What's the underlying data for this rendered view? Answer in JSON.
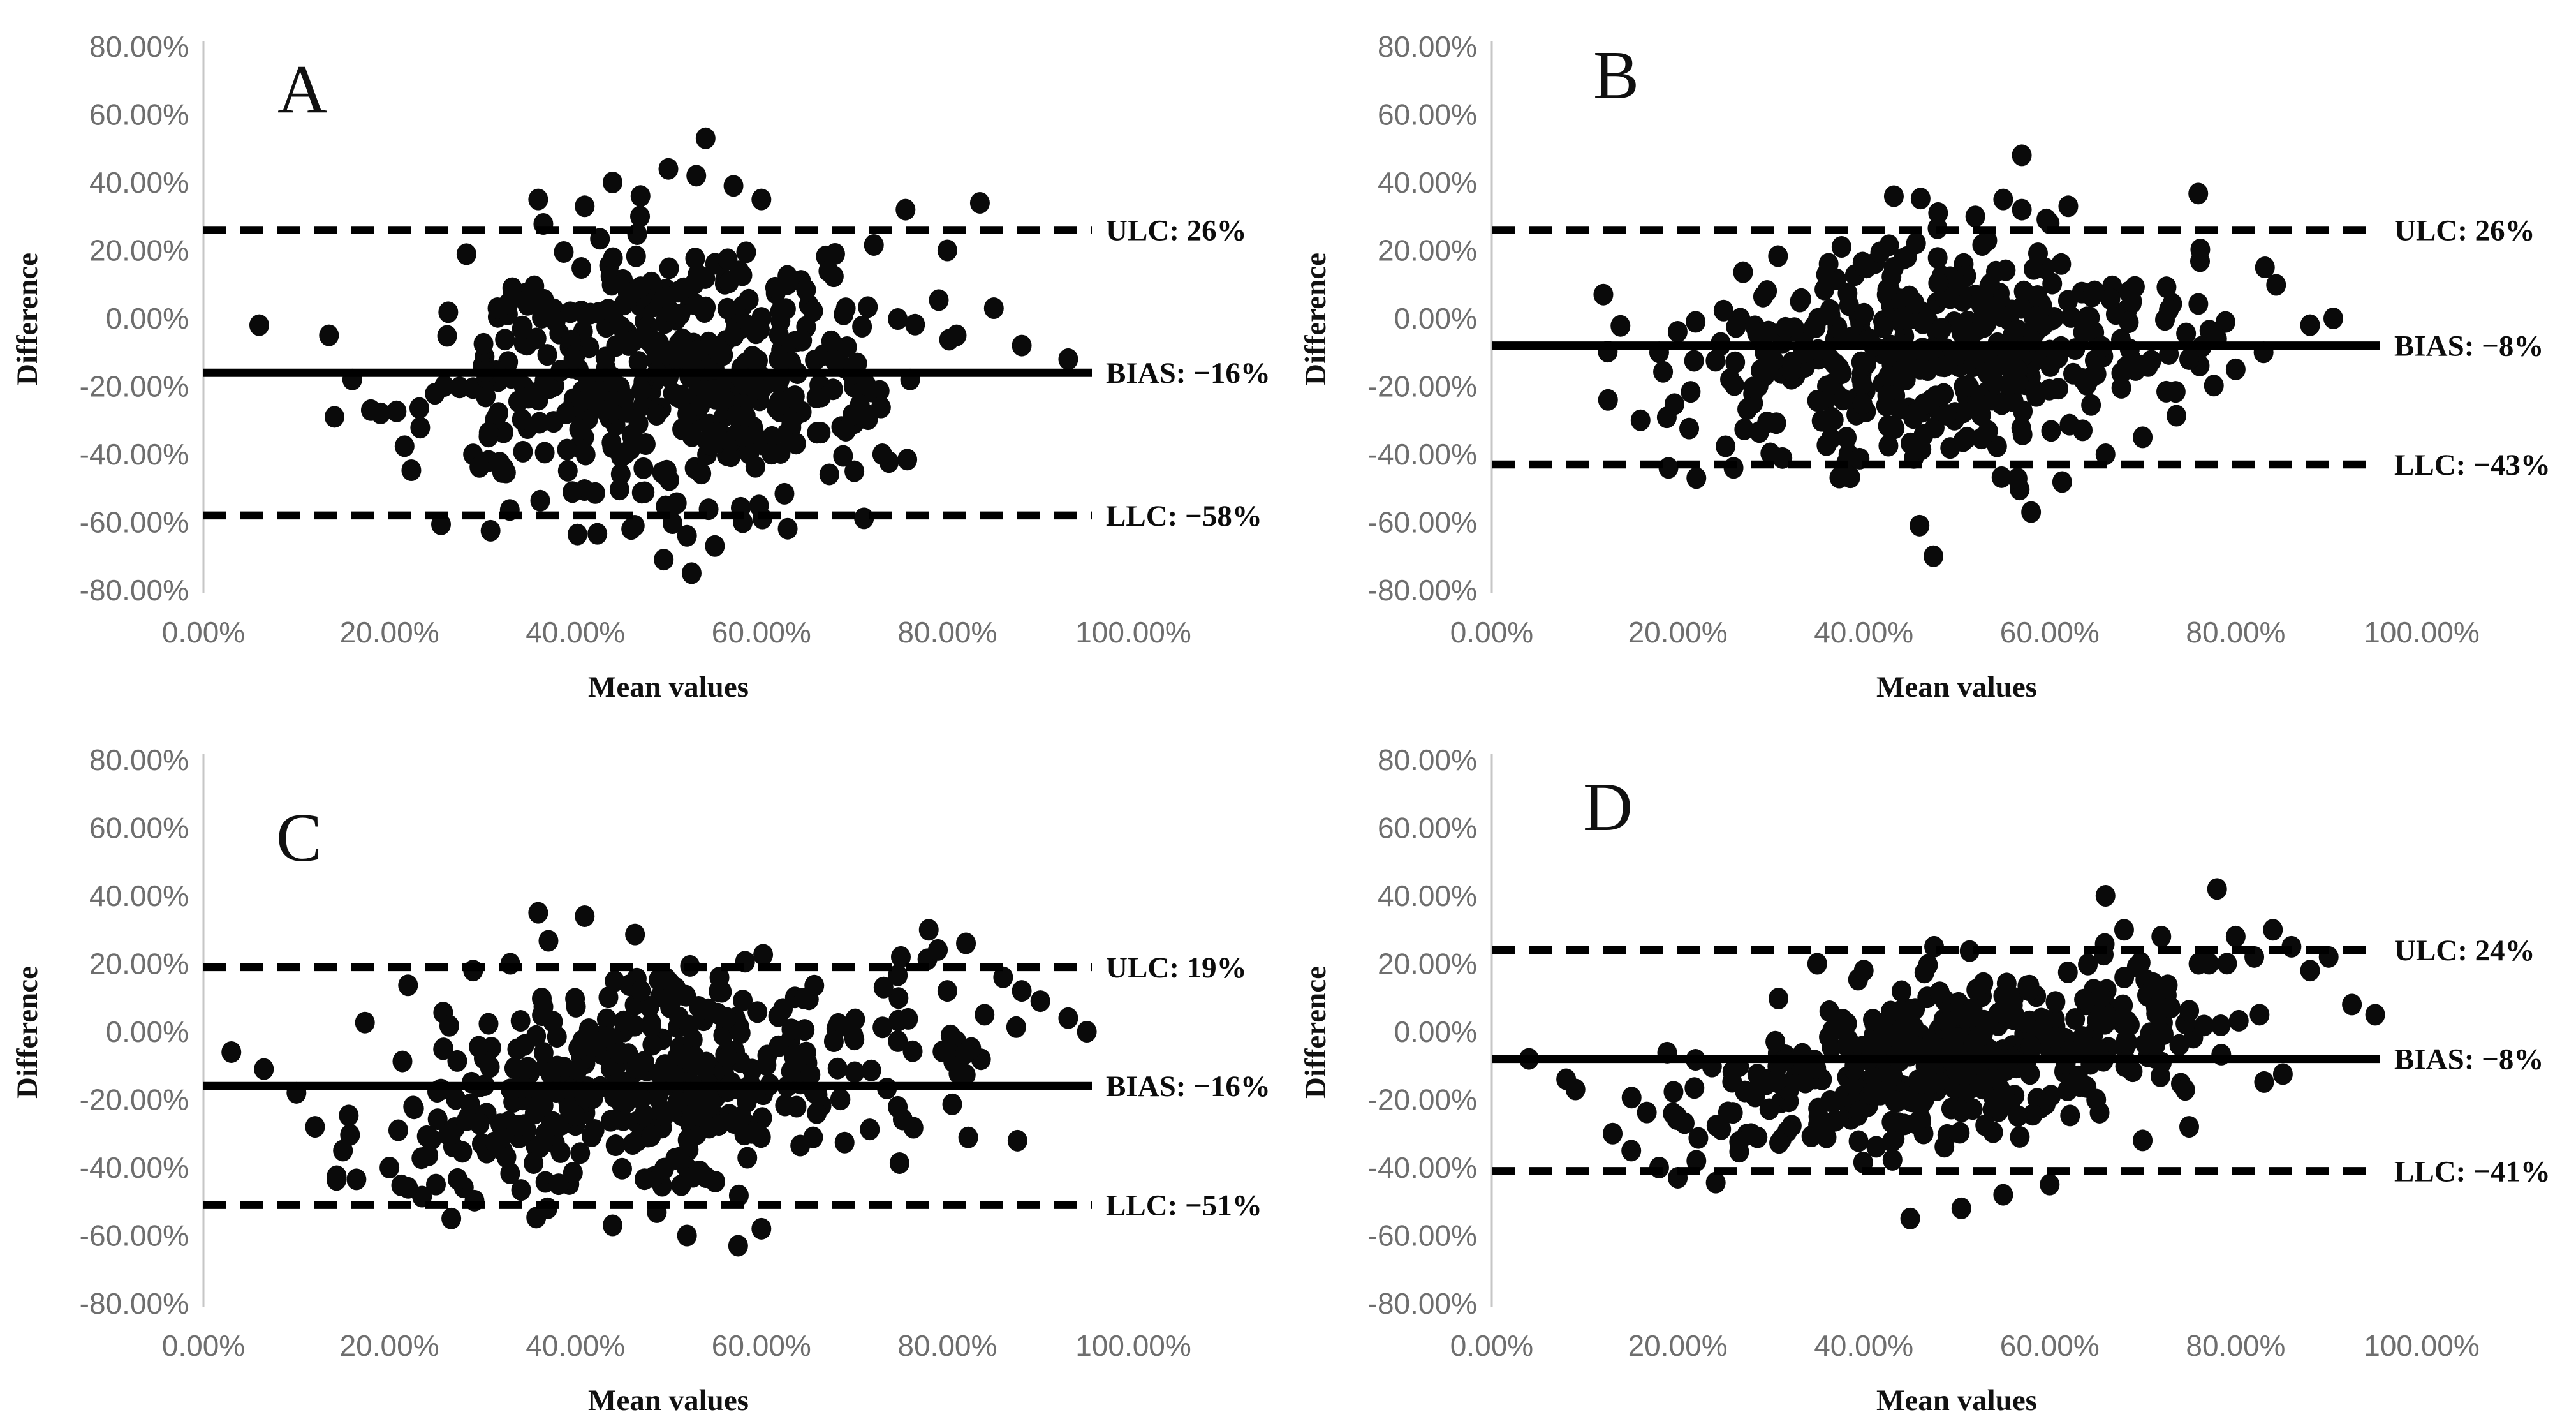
{
  "figure": {
    "description": "Four Bland-Altman scatter plots labeled A, B, C, D comparing mean values vs difference, each with dashed upper/lower limit lines and a solid bias line",
    "background_color": "#ffffff"
  },
  "style": {
    "marker_color": "#0a0a0a",
    "line_color": "#000000",
    "tick_text_color": "#6e6e6e",
    "axis_line_color": "#c6c6c6",
    "label_text_color": "#0c0c0c",
    "marker_rx": 15.5,
    "marker_ry": 17
  },
  "chart_data": [
    {
      "type": "scatter",
      "panel_label": "A",
      "xlabel": "Mean values",
      "ylabel": "Difference",
      "xlim": [
        0,
        100
      ],
      "ylim": [
        -80,
        80
      ],
      "x_tick_values": [
        0,
        20,
        40,
        60,
        80,
        100
      ],
      "x_tick_labels": [
        "0.00%",
        "20.00%",
        "40.00%",
        "60.00%",
        "80.00%",
        "100.00%"
      ],
      "y_tick_values": [
        80,
        60,
        40,
        20,
        0,
        -20,
        -40,
        -60,
        -80
      ],
      "y_tick_labels": [
        "80.00%",
        "60.00%",
        "40.00%",
        "20.00%",
        "0.00%",
        "-20.00%",
        "-40.00%",
        "-60.00%",
        "-80.00%"
      ],
      "grid": false,
      "lines": {
        "ulc": {
          "label": "ULC: 26%",
          "value": 26,
          "style": "dashed"
        },
        "bias": {
          "label": "BIAS: −16%",
          "value": -16,
          "style": "solid"
        },
        "llc": {
          "label": "LLC: −58%",
          "value": -58,
          "style": "dashed"
        }
      },
      "points": {
        "n": 455,
        "x_mean": 51,
        "x_sd": 12,
        "y_center": -16,
        "y_sd": 20,
        "slope": 0.0,
        "x_min": 13,
        "x_max": 82,
        "y_min": -72,
        "y_max": 50,
        "seed": 101
      },
      "outlier_points": [
        [
          6,
          -2
        ],
        [
          13.5,
          -5
        ],
        [
          54,
          53
        ],
        [
          52.5,
          -75
        ],
        [
          49.5,
          -71
        ],
        [
          55,
          -67
        ],
        [
          93,
          -12
        ],
        [
          83.5,
          34
        ],
        [
          80,
          20
        ],
        [
          75.5,
          32
        ],
        [
          36,
          35
        ],
        [
          44,
          40
        ],
        [
          47,
          36
        ],
        [
          41,
          33
        ],
        [
          57,
          39
        ],
        [
          60,
          35
        ],
        [
          53,
          42
        ],
        [
          50,
          44
        ],
        [
          46,
          -62
        ],
        [
          52,
          -64
        ],
        [
          58,
          -60
        ],
        [
          16,
          -18
        ],
        [
          18,
          -27
        ],
        [
          70,
          -45
        ],
        [
          73,
          -40
        ],
        [
          76,
          -18
        ],
        [
          81,
          -5
        ],
        [
          85,
          3
        ],
        [
          88,
          -8
        ]
      ]
    },
    {
      "type": "scatter",
      "panel_label": "B",
      "xlabel": "Mean values",
      "ylabel": "Difference",
      "xlim": [
        0,
        100
      ],
      "ylim": [
        -80,
        80
      ],
      "x_tick_values": [
        0,
        20,
        40,
        60,
        80,
        100
      ],
      "x_tick_labels": [
        "0.00%",
        "20.00%",
        "40.00%",
        "60.00%",
        "80.00%",
        "100.00%"
      ],
      "y_tick_values": [
        80,
        60,
        40,
        20,
        0,
        -20,
        -40,
        -60,
        -80
      ],
      "y_tick_labels": [
        "80.00%",
        "60.00%",
        "40.00%",
        "20.00%",
        "0.00%",
        "-20.00%",
        "-40.00%",
        "-60.00%",
        "-80.00%"
      ],
      "grid": false,
      "lines": {
        "ulc": {
          "label": "ULC: 26%",
          "value": 26,
          "style": "dashed"
        },
        "bias": {
          "label": "BIAS: −8%",
          "value": -8,
          "style": "solid"
        },
        "llc": {
          "label": "LLC: −43%",
          "value": -43,
          "style": "dashed"
        }
      },
      "points": {
        "n": 430,
        "x_mean": 48,
        "x_sd": 13,
        "y_center": -8,
        "y_sd": 14.5,
        "slope": 0.18,
        "x_min": 11,
        "x_max": 90,
        "y_min": -58,
        "y_max": 42,
        "seed": 202
      },
      "outlier_points": [
        [
          57,
          48
        ],
        [
          47.5,
          -70
        ],
        [
          46,
          -61
        ],
        [
          58,
          -57
        ],
        [
          88,
          -2
        ],
        [
          90.5,
          0
        ],
        [
          12,
          7
        ],
        [
          12.5,
          -24
        ],
        [
          19,
          -44
        ],
        [
          22,
          -47
        ],
        [
          26,
          -44
        ],
        [
          55,
          35
        ],
        [
          57,
          32
        ],
        [
          52,
          30
        ],
        [
          60,
          28
        ],
        [
          62,
          33
        ],
        [
          48,
          31
        ],
        [
          66,
          -40
        ],
        [
          70,
          -35
        ],
        [
          75,
          -12
        ],
        [
          78,
          -6
        ],
        [
          80,
          -15
        ],
        [
          83,
          -10
        ],
        [
          18,
          -10
        ],
        [
          16,
          -30
        ]
      ]
    },
    {
      "type": "scatter",
      "panel_label": "C",
      "xlabel": "Mean values",
      "ylabel": "Difference",
      "xlim": [
        0,
        100
      ],
      "ylim": [
        -80,
        80
      ],
      "x_tick_values": [
        0,
        20,
        40,
        60,
        80,
        100
      ],
      "x_tick_labels": [
        "0.00%",
        "20.00%",
        "40.00%",
        "60.00%",
        "80.00%",
        "100.00%"
      ],
      "y_tick_values": [
        80,
        60,
        40,
        20,
        0,
        -20,
        -40,
        -60,
        -80
      ],
      "y_tick_labels": [
        "80.00%",
        "60.00%",
        "40.00%",
        "20.00%",
        "0.00%",
        "-20.00%",
        "-40.00%",
        "-60.00%",
        "-80.00%"
      ],
      "grid": false,
      "lines": {
        "ulc": {
          "label": "ULC: 19%",
          "value": 19,
          "style": "dashed"
        },
        "bias": {
          "label": "BIAS: −16%",
          "value": -16,
          "style": "solid"
        },
        "llc": {
          "label": "LLC: −51%",
          "value": -51,
          "style": "dashed"
        }
      },
      "points": {
        "n": 400,
        "x_mean": 49,
        "x_sd": 14,
        "y_center": -16,
        "y_sd": 15,
        "slope": 0.22,
        "x_min": 11,
        "x_max": 89,
        "y_min": -56,
        "y_max": 32,
        "seed": 303
      },
      "outlier_points": [
        [
          3,
          -6
        ],
        [
          6.5,
          -11
        ],
        [
          36,
          35
        ],
        [
          41,
          34
        ],
        [
          78,
          30
        ],
        [
          82,
          26
        ],
        [
          52,
          -60
        ],
        [
          57.5,
          -63
        ],
        [
          60,
          -58
        ],
        [
          90,
          9
        ],
        [
          93,
          4
        ],
        [
          86,
          16
        ],
        [
          88,
          12
        ],
        [
          29,
          18
        ],
        [
          33,
          20
        ],
        [
          75,
          22
        ],
        [
          80,
          12
        ],
        [
          84,
          5
        ],
        [
          44,
          -57
        ],
        [
          37,
          -52
        ],
        [
          25,
          -45
        ],
        [
          20,
          -40
        ],
        [
          15,
          -35
        ],
        [
          12,
          -28
        ],
        [
          10,
          -18
        ],
        [
          95,
          0
        ]
      ]
    },
    {
      "type": "scatter",
      "panel_label": "D",
      "xlabel": "Mean values",
      "ylabel": "Difference",
      "xlim": [
        0,
        100
      ],
      "ylim": [
        -80,
        80
      ],
      "x_tick_values": [
        0,
        20,
        40,
        60,
        80,
        100
      ],
      "x_tick_labels": [
        "0.00%",
        "20.00%",
        "40.00%",
        "60.00%",
        "80.00%",
        "100.00%"
      ],
      "y_tick_values": [
        80,
        60,
        40,
        20,
        0,
        -20,
        -40,
        -60,
        -80
      ],
      "y_tick_labels": [
        "80.00%",
        "60.00%",
        "40.00%",
        "20.00%",
        "0.00%",
        "-20.00%",
        "-40.00%",
        "-60.00%",
        "-80.00%"
      ],
      "grid": false,
      "lines": {
        "ulc": {
          "label": "ULC: 24%",
          "value": 24,
          "style": "dashed"
        },
        "bias": {
          "label": "BIAS: −8%",
          "value": -8,
          "style": "solid"
        },
        "llc": {
          "label": "LLC: −41%",
          "value": -41,
          "style": "dashed"
        }
      },
      "points": {
        "n": 440,
        "x_mean": 50,
        "x_sd": 14,
        "y_center": -8,
        "y_sd": 11.5,
        "slope": 0.45,
        "x_min": 12,
        "x_max": 90,
        "y_min": -53,
        "y_max": 40,
        "seed": 404
      },
      "outlier_points": [
        [
          78,
          42
        ],
        [
          95,
          5
        ],
        [
          92.5,
          8
        ],
        [
          45,
          -55
        ],
        [
          50.5,
          -52
        ],
        [
          4,
          -8
        ],
        [
          8,
          -14
        ],
        [
          9,
          -17
        ],
        [
          86,
          25
        ],
        [
          88,
          18
        ],
        [
          82,
          22
        ],
        [
          70,
          -32
        ],
        [
          75,
          -28
        ],
        [
          66,
          40
        ],
        [
          68,
          30
        ],
        [
          72,
          28
        ],
        [
          76,
          20
        ],
        [
          80,
          28
        ],
        [
          84,
          30
        ],
        [
          90,
          22
        ],
        [
          13,
          -30
        ],
        [
          15,
          -35
        ],
        [
          18,
          -40
        ],
        [
          20,
          -43
        ],
        [
          22,
          -38
        ],
        [
          55,
          -48
        ],
        [
          60,
          -45
        ],
        [
          65,
          -20
        ],
        [
          35,
          20
        ],
        [
          40,
          18
        ]
      ]
    }
  ]
}
